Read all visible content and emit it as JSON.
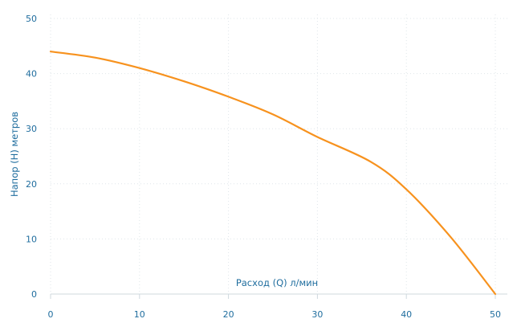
{
  "chart_data": {
    "type": "line",
    "xlabel": "Расход (Q) л/мин",
    "ylabel": "Напор (H) метров",
    "xlim": [
      0,
      50
    ],
    "ylim": [
      0,
      50
    ],
    "xticks": [
      "0",
      "10",
      "20",
      "30",
      "40",
      "50"
    ],
    "yticks": [
      "0",
      "10",
      "20",
      "30",
      "40",
      "50"
    ],
    "grid": true,
    "series": [
      {
        "color": "#f7921e",
        "x": [
          0,
          5,
          10,
          15,
          20,
          25,
          30,
          36,
          40,
          45,
          50
        ],
        "y": [
          44,
          42.9,
          41,
          38.6,
          35.8,
          32.6,
          28.5,
          24,
          19,
          10.3,
          0
        ]
      }
    ]
  }
}
